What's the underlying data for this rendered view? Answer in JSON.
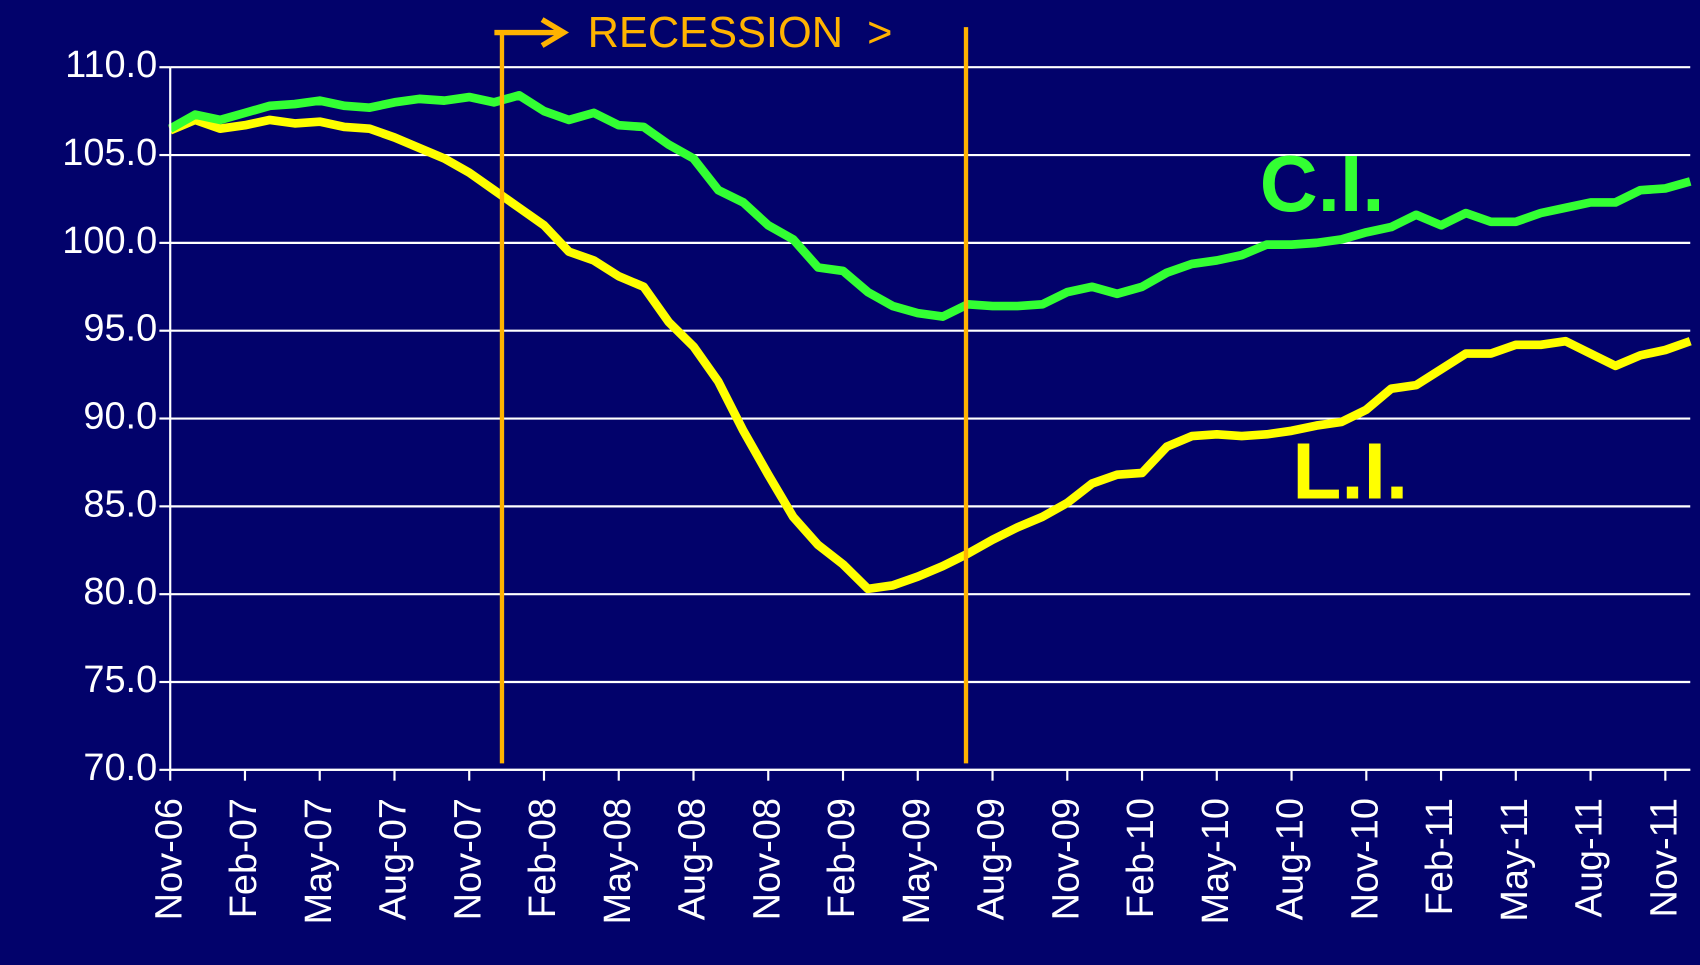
{
  "chart_data": {
    "type": "line",
    "categories": [
      "Nov-06",
      null,
      null,
      "Feb-07",
      null,
      null,
      "May-07",
      null,
      null,
      "Aug-07",
      null,
      null,
      "Nov-07",
      null,
      null,
      "Feb-08",
      null,
      null,
      "May-08",
      null,
      null,
      "Aug-08",
      null,
      null,
      "Nov-08",
      null,
      null,
      "Feb-09",
      null,
      null,
      "May-09",
      null,
      null,
      "Aug-09",
      null,
      null,
      "Nov-09",
      null,
      null,
      "Feb-10",
      null,
      null,
      "May-10",
      null,
      null,
      "Aug-10",
      null,
      null,
      "Nov-10",
      null,
      null,
      "Feb-11",
      null,
      null,
      "May-11",
      null,
      null,
      "Aug-11",
      null,
      null,
      "Nov-11",
      null
    ],
    "series": [
      {
        "name": "C.I.",
        "color": "#33ff33",
        "values": [
          106.5,
          107.3,
          107.0,
          107.4,
          107.8,
          107.9,
          108.1,
          107.8,
          107.7,
          108.0,
          108.2,
          108.1,
          108.3,
          108.0,
          108.4,
          107.5,
          107.0,
          107.4,
          106.7,
          106.6,
          105.6,
          104.8,
          103.0,
          102.3,
          101.0,
          100.2,
          98.6,
          98.4,
          97.2,
          96.4,
          96.0,
          95.8,
          96.5,
          96.4,
          96.4,
          96.5,
          97.2,
          97.5,
          97.1,
          97.5,
          98.3,
          98.8,
          99.0,
          99.3,
          99.9,
          99.9,
          100.0,
          100.2,
          100.6,
          100.9,
          101.6,
          101.0,
          101.7,
          101.2,
          101.2,
          101.7,
          102.0,
          102.3,
          102.3,
          103.0,
          103.1,
          103.5
        ]
      },
      {
        "name": "L.I.",
        "color": "#ffff00",
        "values": [
          106.4,
          107.0,
          106.5,
          106.7,
          107.0,
          106.8,
          106.9,
          106.6,
          106.5,
          106.0,
          105.4,
          104.8,
          104.0,
          103.0,
          102.0,
          101.0,
          99.5,
          99.0,
          98.1,
          97.5,
          95.5,
          94.1,
          92.1,
          89.3,
          86.8,
          84.4,
          82.8,
          81.7,
          80.3,
          80.5,
          81.0,
          81.6,
          82.3,
          83.1,
          83.8,
          84.4,
          85.2,
          86.3,
          86.8,
          86.9,
          88.4,
          89.0,
          89.1,
          89.0,
          89.1,
          89.3,
          89.6,
          89.8,
          90.5,
          91.7,
          91.9,
          92.8,
          93.7,
          93.7,
          94.2,
          94.2,
          94.4,
          93.7,
          93.0,
          93.6,
          93.9,
          94.4
        ]
      }
    ],
    "ylim": [
      70,
      110
    ],
    "yticks": [
      {
        "value": 70,
        "label": "70.0"
      },
      {
        "value": 75,
        "label": "75.0"
      },
      {
        "value": 80,
        "label": "80.0"
      },
      {
        "value": 85,
        "label": "85.0"
      },
      {
        "value": 90,
        "label": "90.0"
      },
      {
        "value": 95,
        "label": "95.0"
      },
      {
        "value": 100,
        "label": "100.0"
      },
      {
        "value": 105,
        "label": "105.0"
      },
      {
        "value": 110,
        "label": "110.0"
      }
    ],
    "grid": true,
    "annotation": "RECESSION  >"
  }
}
